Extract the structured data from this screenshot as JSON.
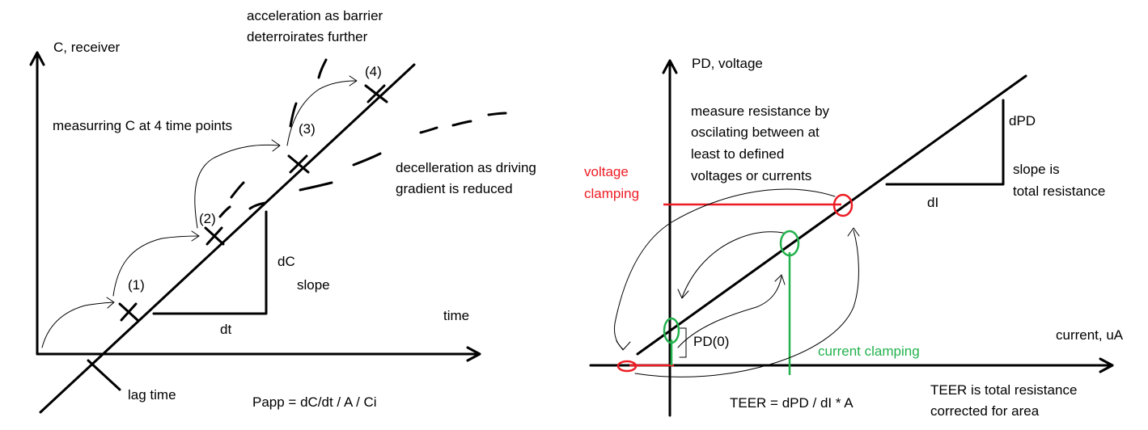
{
  "left": {
    "y_axis_label": "C, receiver",
    "x_axis_label": "time",
    "note_acceleration_1": "acceleration as barrier",
    "note_acceleration_2": "deterroirates further",
    "note_measuring": "measurring C at 4 time points",
    "note_deceleration_1": "decelleration as driving",
    "note_deceleration_2": "gradient is reduced",
    "point_labels": [
      "(1)",
      "(2)",
      "(3)",
      "(4)"
    ],
    "dc_label": "dC",
    "slope_label": "slope",
    "dt_label": "dt",
    "lag_time_label": "lag time",
    "papp_formula": "Papp = dC/dt / A / Ci"
  },
  "right": {
    "y_axis_label": "PD, voltage",
    "x_axis_label": "current, uA",
    "note_measure_1": "measure resistance by",
    "note_measure_2": "oscilating between at",
    "note_measure_3": "least to defined",
    "note_measure_4": "voltages or currents",
    "voltage_clamping_1": "voltage",
    "voltage_clamping_2": "clamping",
    "dpd_label": "dPD",
    "di_label": "dI",
    "slope_is_1": "slope is",
    "slope_is_2": "total resistance",
    "pd0_label": "PD(0)",
    "current_clamping": "current clamping",
    "teer_formula": "TEER = dPD / dI * A",
    "teer_note_1": "TEER is total resistance",
    "teer_note_2": "corrected for area"
  },
  "colors": {
    "ink": "#000000",
    "voltage_clamp": "#ed1c24",
    "current_clamp": "#22b14c"
  }
}
